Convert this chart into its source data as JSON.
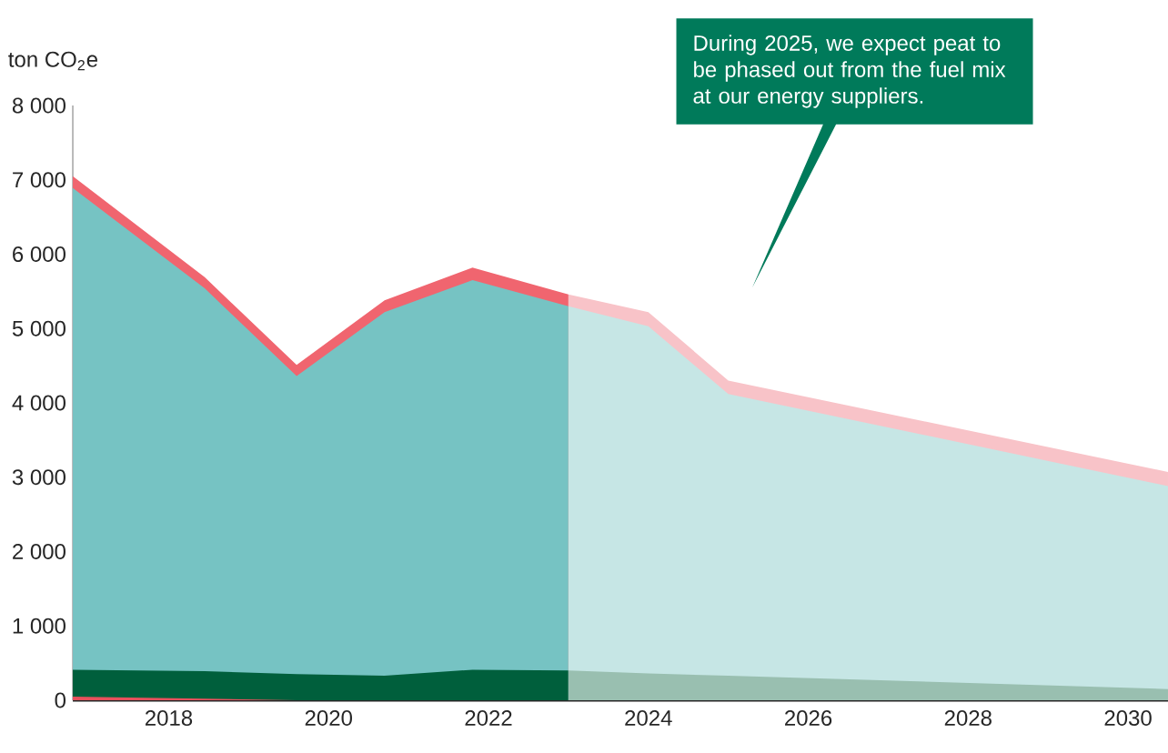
{
  "chart_data": {
    "type": "area",
    "ylabel": "ton CO$_{2}$e",
    "annotations": [
      "During 2025, we expect peat to be phased out from the fuel mix at our energy suppliers."
    ],
    "series": [
      {
        "color": "#f0656f",
        "x": [
          2016.8,
          2018.45,
          2019.6,
          2020.7,
          2021.8,
          2023
        ],
        "values": [
          7050,
          5690,
          4510,
          5380,
          5820,
          5460
        ]
      },
      {
        "color": "#76c3c3",
        "x": [
          2016.8,
          2018.45,
          2019.6,
          2020.7,
          2021.8,
          2023
        ],
        "values": [
          6890,
          5540,
          4360,
          5220,
          5650,
          5300
        ]
      },
      {
        "color": "#005f3c",
        "x": [
          2016.8,
          2018.45,
          2019.6,
          2020.7,
          2021.8,
          2023
        ],
        "values": [
          410,
          390,
          350,
          330,
          410,
          400
        ]
      },
      {
        "color": "#e8505c",
        "x": [
          2016.8,
          2018.45,
          2019.6
        ],
        "values": [
          50,
          20,
          0
        ]
      },
      {
        "color": "#f8c3c8",
        "x": [
          2023,
          2024,
          2025,
          2030.5
        ],
        "values": [
          5460,
          5220,
          4300,
          3070
        ]
      },
      {
        "color": "#c6e6e5",
        "x": [
          2023,
          2024,
          2025,
          2030.5
        ],
        "values": [
          5300,
          5030,
          4120,
          2880
        ]
      },
      {
        "color": "#99bfb0",
        "x": [
          2023,
          2024,
          2025,
          2030.5
        ],
        "values": [
          400,
          360,
          330,
          150
        ]
      }
    ],
    "xlim": [
      2016.8,
      2030.5
    ],
    "xticks": [
      2018,
      2020,
      2022,
      2024,
      2026,
      2028,
      2030
    ],
    "ylim": [
      0,
      8000
    ],
    "yticks": [
      {
        "value": 0,
        "label": "0"
      },
      {
        "value": 1000,
        "label": "1 000"
      },
      {
        "value": 2000,
        "label": "2 000"
      },
      {
        "value": 3000,
        "label": "3 000"
      },
      {
        "value": 4000,
        "label": "4 000"
      },
      {
        "value": 5000,
        "label": "5 000"
      },
      {
        "value": 6000,
        "label": "6 000"
      },
      {
        "value": 7000,
        "label": "7 000"
      },
      {
        "value": 8000,
        "label": "8 000"
      }
    ],
    "grid": false
  }
}
